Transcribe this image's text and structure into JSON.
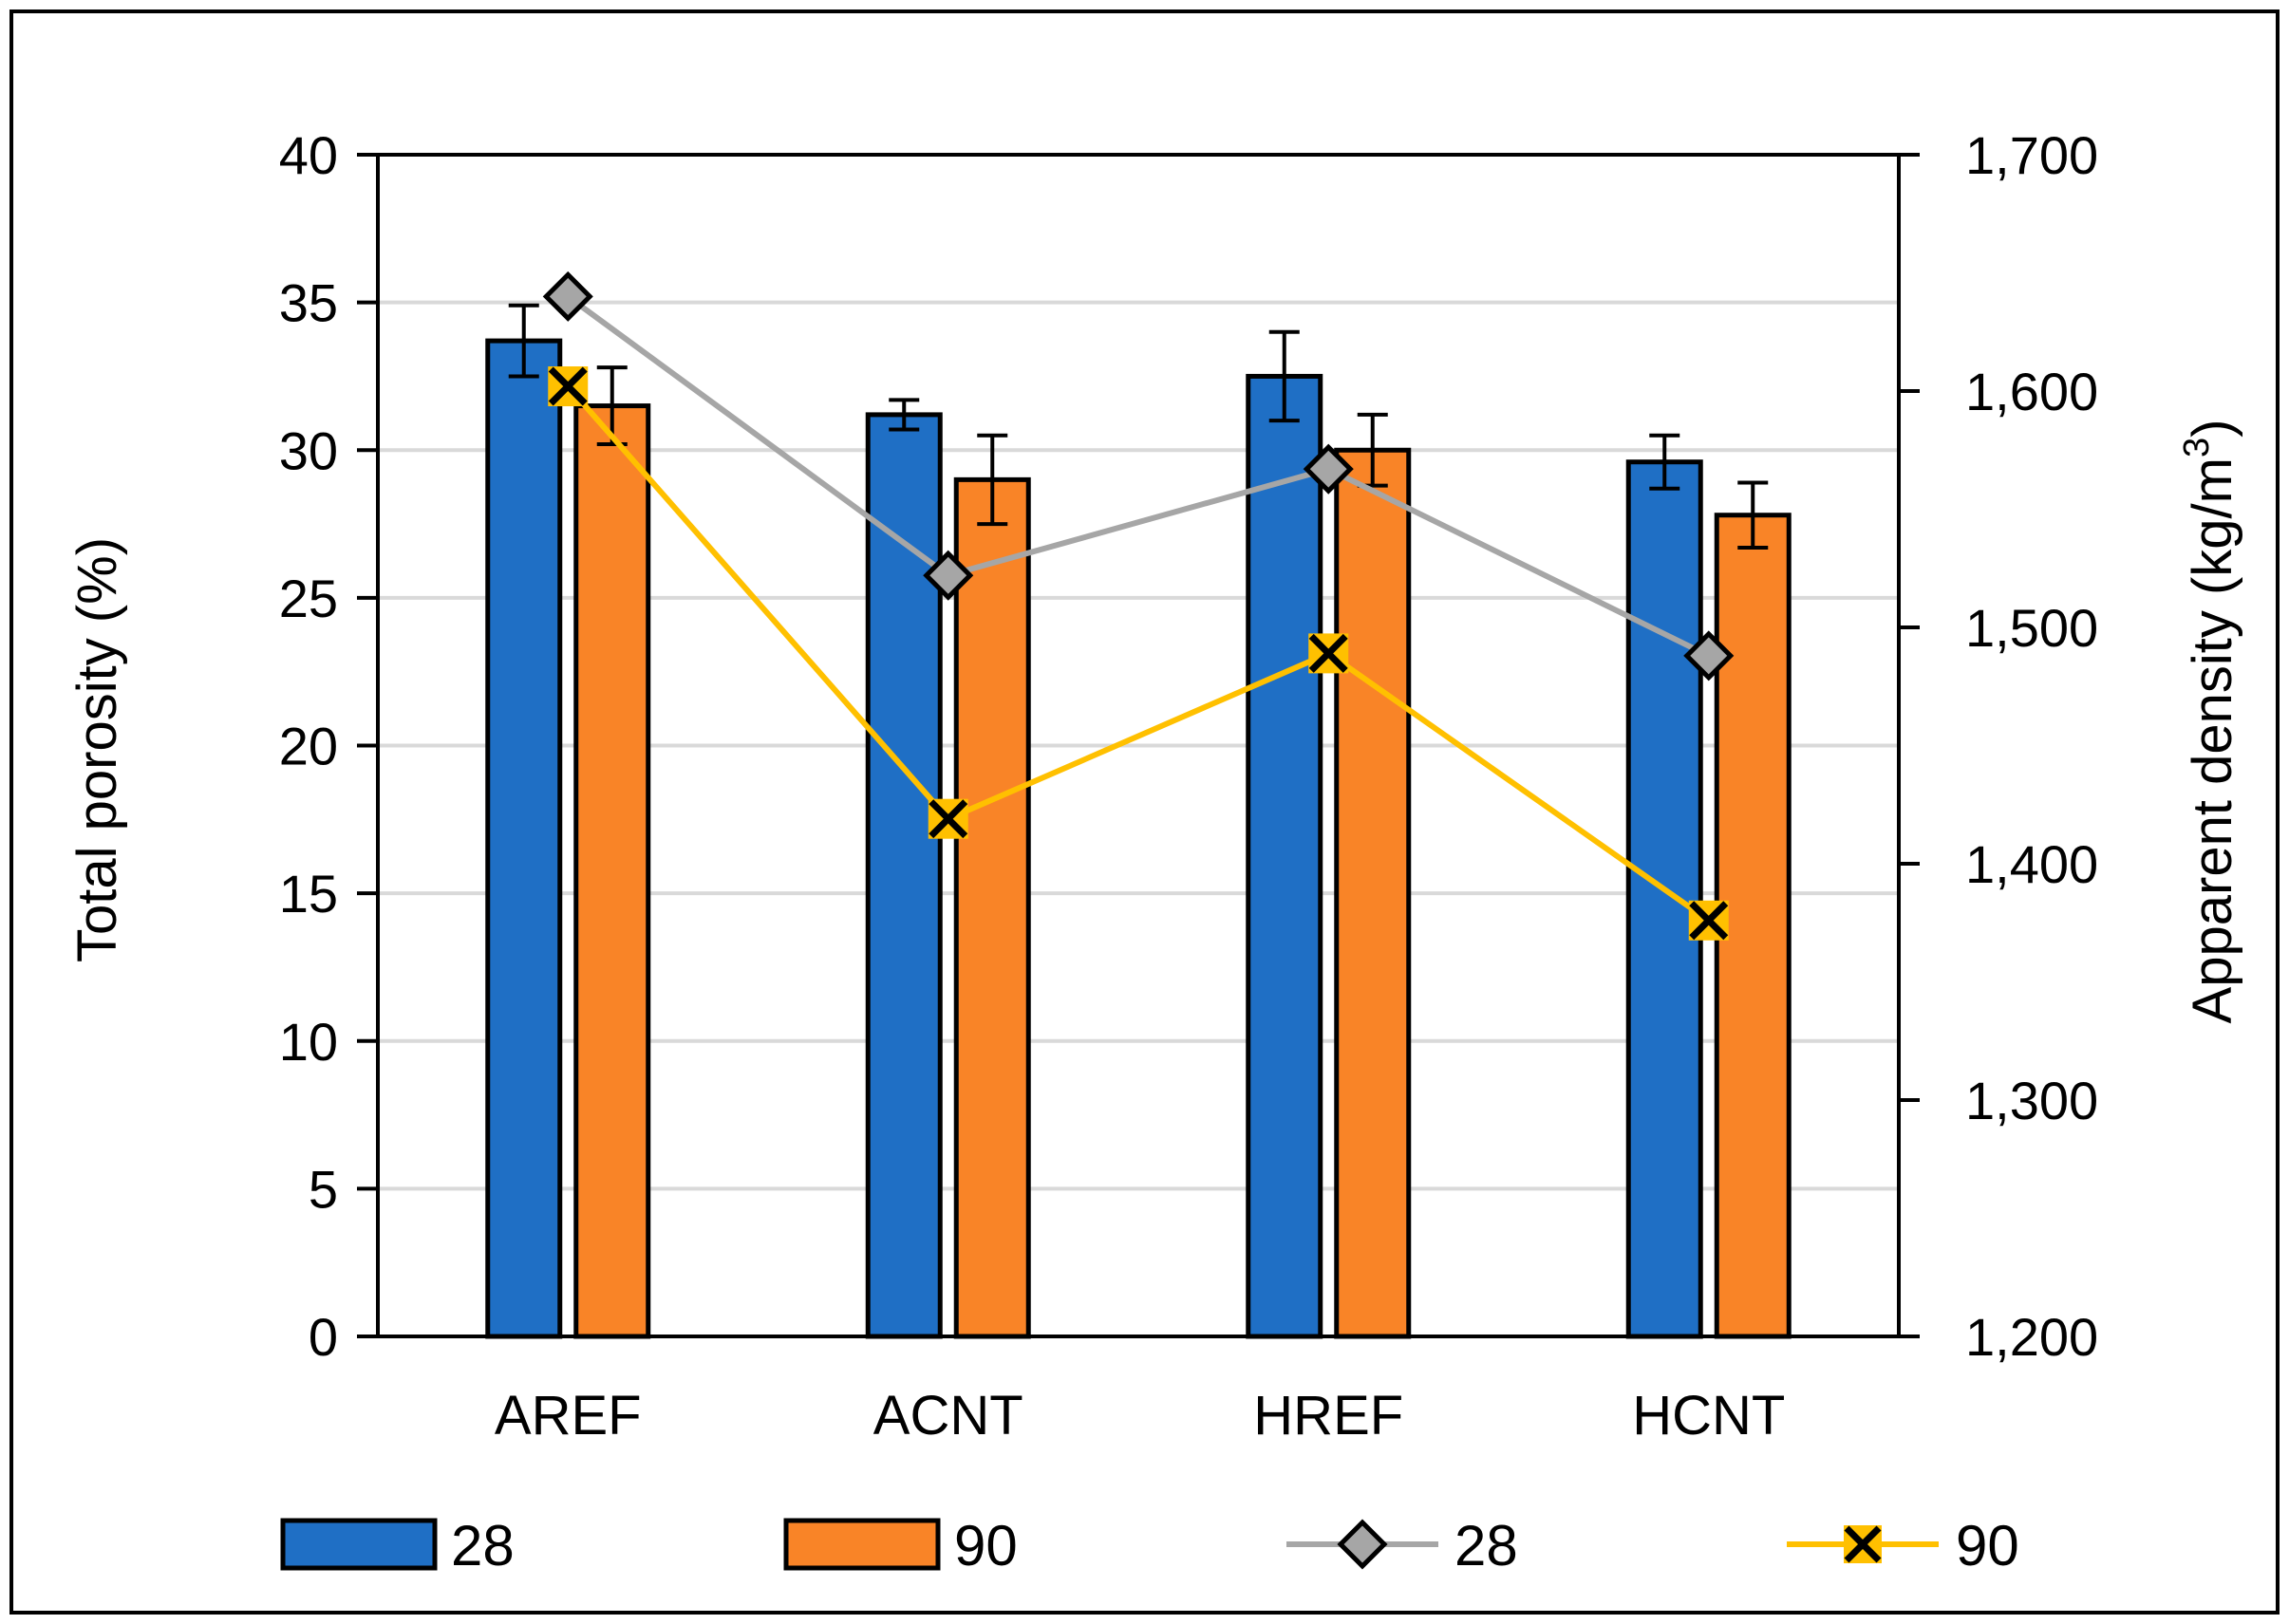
{
  "chart_data": {
    "type": "bar+line",
    "title": "",
    "categories": [
      "AREF",
      "ACNT",
      "HREF",
      "HCNT"
    ],
    "ylabel": "Total porosity (%)",
    "ylabel_right_main": "Apparent density (kg/m",
    "ylabel_right_sup": "3",
    "ylabel_right_tail": ")",
    "ylim": [
      0,
      40
    ],
    "y_ticks": [
      "0",
      "5",
      "10",
      "15",
      "20",
      "25",
      "30",
      "35",
      "40"
    ],
    "y2lim": [
      1200,
      1700
    ],
    "y2_ticks": [
      "1,200",
      "1,300",
      "1,400",
      "1,500",
      "1,600",
      "1,700"
    ],
    "grid": true,
    "legend_position": "bottom",
    "bar_series": [
      {
        "name": "28",
        "color": "#1F6FC5",
        "values": [
          33.7,
          31.2,
          32.5,
          29.6
        ],
        "errors": [
          1.2,
          0.5,
          1.5,
          0.9
        ]
      },
      {
        "name": "90",
        "color": "#F98427",
        "values": [
          31.5,
          29.0,
          30.0,
          27.8
        ],
        "errors": [
          1.3,
          1.5,
          1.2,
          1.1
        ]
      }
    ],
    "line_series": [
      {
        "name": "28",
        "axis": "right",
        "color": "#A6A6A6",
        "marker": "diamond",
        "marker_color": "#A6A6A6",
        "values": [
          1640,
          1522,
          1567,
          1488
        ]
      },
      {
        "name": "90",
        "axis": "right",
        "color": "#FFC000",
        "marker": "x",
        "marker_color": "#FFC000",
        "values": [
          1602,
          1419,
          1489,
          1376
        ]
      }
    ]
  }
}
